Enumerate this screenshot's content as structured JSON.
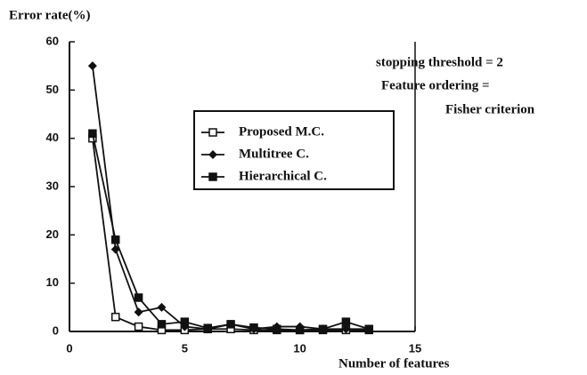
{
  "chart_data": {
    "type": "line",
    "y_label": "Error rate(%)",
    "x_label": "Number of features",
    "annotations": [
      "stopping threshold = 2",
      "Feature ordering =",
      "Fisher criterion"
    ],
    "x": [
      1,
      2,
      3,
      4,
      5,
      6,
      7,
      8,
      9,
      10,
      11,
      12,
      13
    ],
    "series": [
      {
        "name": "Proposed M.C.",
        "color": "#111111",
        "marker": "open-square",
        "values": [
          40,
          3,
          1,
          0.3,
          0.3,
          0.5,
          0.5,
          0.3,
          0.3,
          0.3,
          0.3,
          0.3,
          0.3
        ]
      },
      {
        "name": "Multitree C.",
        "color": "#111111",
        "marker": "diamond",
        "values": [
          55,
          17,
          4,
          5,
          1,
          0.5,
          1.5,
          0.5,
          1,
          1,
          0.5,
          0.5,
          0.5
        ]
      },
      {
        "name": "Hierarchical C.",
        "color": "#111111",
        "marker": "filled-square",
        "values": [
          41,
          19,
          7,
          1.5,
          2,
          0.7,
          1.5,
          0.8,
          0.5,
          0.3,
          0.5,
          2,
          0.5
        ]
      }
    ],
    "xlim": [
      0,
      15
    ],
    "xticks": [
      0,
      5,
      10,
      15
    ],
    "ylim": [
      0,
      60
    ],
    "yticks": [
      0,
      10,
      20,
      30,
      40,
      50,
      60
    ]
  }
}
